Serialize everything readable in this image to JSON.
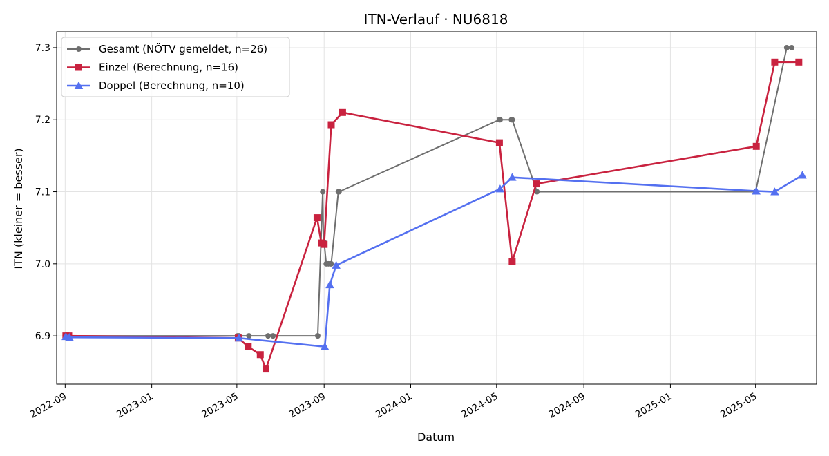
{
  "chart_data": {
    "type": "line",
    "title": "ITN-Verlauf · NU6818",
    "xlabel": "Datum",
    "ylabel": "ITN  (kleiner = besser)",
    "xlim": [
      "2022-08-20",
      "2025-07-26"
    ],
    "ylim": [
      6.833,
      7.322
    ],
    "x_ticks": [
      "2022-09",
      "2023-01",
      "2023-05",
      "2023-09",
      "2024-01",
      "2024-05",
      "2024-09",
      "2025-01",
      "2025-05"
    ],
    "x_tick_dates": [
      "2022-09-01",
      "2023-01-01",
      "2023-05-01",
      "2023-09-01",
      "2024-01-01",
      "2024-05-01",
      "2024-09-01",
      "2025-01-01",
      "2025-05-01"
    ],
    "y_ticks": [
      6.9,
      7.0,
      7.1,
      7.2,
      7.3
    ],
    "y_tick_labels": [
      "6.9",
      "7.0",
      "7.1",
      "7.2",
      "7.3"
    ],
    "grid": true,
    "legend_position": "top-left",
    "series": [
      {
        "name": "Gesamt (NÖTV gemeldet, n=26)",
        "color": "#6e6e6e",
        "marker": "circle",
        "points": [
          {
            "x": "2022-09-01",
            "y": 6.9
          },
          {
            "x": "2022-09-02",
            "y": 6.9
          },
          {
            "x": "2022-09-04",
            "y": 6.9
          },
          {
            "x": "2023-05-02",
            "y": 6.9
          },
          {
            "x": "2023-05-04",
            "y": 6.9
          },
          {
            "x": "2023-05-18",
            "y": 6.9
          },
          {
            "x": "2023-06-14",
            "y": 6.9
          },
          {
            "x": "2023-06-21",
            "y": 6.9
          },
          {
            "x": "2023-08-23",
            "y": 6.9
          },
          {
            "x": "2023-08-30",
            "y": 7.1
          },
          {
            "x": "2023-08-31",
            "y": 7.03
          },
          {
            "x": "2023-09-01",
            "y": 7.03
          },
          {
            "x": "2023-09-04",
            "y": 7.0
          },
          {
            "x": "2023-09-07",
            "y": 7.0
          },
          {
            "x": "2023-09-10",
            "y": 7.0
          },
          {
            "x": "2023-09-11",
            "y": 7.0
          },
          {
            "x": "2023-09-21",
            "y": 7.1
          },
          {
            "x": "2023-09-22",
            "y": 7.1
          },
          {
            "x": "2024-05-05",
            "y": 7.2
          },
          {
            "x": "2024-05-06",
            "y": 7.2
          },
          {
            "x": "2024-05-22",
            "y": 7.2
          },
          {
            "x": "2024-05-23",
            "y": 7.2
          },
          {
            "x": "2024-06-27",
            "y": 7.1
          },
          {
            "x": "2025-05-01",
            "y": 7.1
          },
          {
            "x": "2025-06-14",
            "y": 7.3
          },
          {
            "x": "2025-06-21",
            "y": 7.3
          }
        ]
      },
      {
        "name": "Einzel (Berechnung, n=16)",
        "color": "#c9223f",
        "marker": "square",
        "points": [
          {
            "x": "2022-09-02",
            "y": 6.9
          },
          {
            "x": "2022-09-06",
            "y": 6.9
          },
          {
            "x": "2023-05-03",
            "y": 6.897
          },
          {
            "x": "2023-05-17",
            "y": 6.885
          },
          {
            "x": "2023-06-03",
            "y": 6.874
          },
          {
            "x": "2023-06-11",
            "y": 6.854
          },
          {
            "x": "2023-08-22",
            "y": 7.064
          },
          {
            "x": "2023-08-28",
            "y": 7.029
          },
          {
            "x": "2023-09-01",
            "y": 7.027
          },
          {
            "x": "2023-09-11",
            "y": 7.193
          },
          {
            "x": "2023-09-27",
            "y": 7.21
          },
          {
            "x": "2024-05-05",
            "y": 7.168
          },
          {
            "x": "2024-05-23",
            "y": 7.003
          },
          {
            "x": "2024-06-26",
            "y": 7.111
          },
          {
            "x": "2025-05-02",
            "y": 7.163
          },
          {
            "x": "2025-05-28",
            "y": 7.28
          },
          {
            "x": "2025-07-01",
            "y": 7.28
          }
        ]
      },
      {
        "name": "Doppel (Berechnung, n=10)",
        "color": "#5470f0",
        "marker": "triangle",
        "points": [
          {
            "x": "2022-09-02",
            "y": 6.899
          },
          {
            "x": "2022-09-07",
            "y": 6.898
          },
          {
            "x": "2023-05-04",
            "y": 6.897
          },
          {
            "x": "2023-09-02",
            "y": 6.885
          },
          {
            "x": "2023-09-09",
            "y": 6.971
          },
          {
            "x": "2023-09-18",
            "y": 6.998
          },
          {
            "x": "2024-05-06",
            "y": 7.104
          },
          {
            "x": "2024-05-23",
            "y": 7.12
          },
          {
            "x": "2025-05-02",
            "y": 7.101
          },
          {
            "x": "2025-05-28",
            "y": 7.1
          },
          {
            "x": "2025-07-06",
            "y": 7.123
          }
        ]
      }
    ]
  }
}
